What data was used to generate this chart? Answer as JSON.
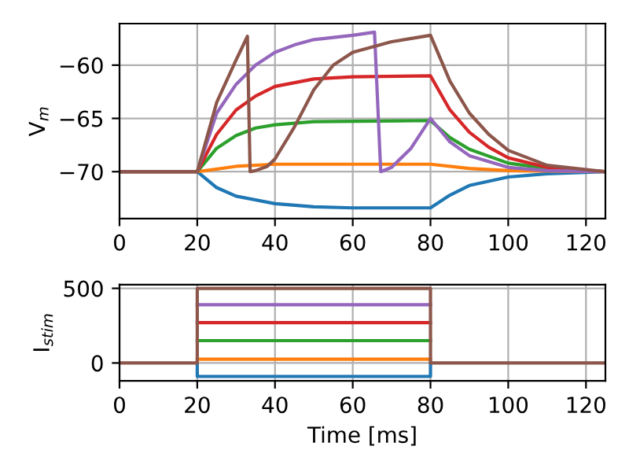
{
  "chart_data": [
    {
      "type": "line",
      "ylabel": "V$_{m}$",
      "xlim": [
        0,
        125
      ],
      "xticks": [
        0,
        20,
        40,
        60,
        80,
        100,
        120
      ],
      "ylim": [
        -74.4,
        -56.1
      ],
      "yticks": [
        {
          "value": -70,
          "label": "−70"
        },
        {
          "value": -65,
          "label": "−65"
        },
        {
          "value": -60,
          "label": "−60"
        }
      ],
      "grid": true,
      "line_style": "solid",
      "marker": "none",
      "series": [
        {
          "color": "#1f77b4",
          "x": [
            0,
            20,
            25,
            30,
            40,
            50,
            60,
            80,
            85,
            90,
            100,
            110,
            125
          ],
          "values": [
            -70,
            -70,
            -71.5,
            -72.3,
            -73.0,
            -73.3,
            -73.4,
            -73.4,
            -72.2,
            -71.3,
            -70.5,
            -70.2,
            -70
          ]
        },
        {
          "color": "#ff7f0e",
          "x": [
            0,
            20,
            30,
            40,
            80,
            90,
            100,
            125
          ],
          "values": [
            -70,
            -70,
            -69.5,
            -69.3,
            -69.3,
            -69.7,
            -69.9,
            -70
          ]
        },
        {
          "color": "#2ca02c",
          "x": [
            0,
            20,
            25,
            30,
            35,
            40,
            50,
            80,
            85,
            90,
            100,
            110,
            125
          ],
          "values": [
            -70,
            -70,
            -67.8,
            -66.6,
            -65.9,
            -65.6,
            -65.3,
            -65.2,
            -66.8,
            -67.9,
            -69.2,
            -69.7,
            -70
          ]
        },
        {
          "color": "#d62728",
          "x": [
            0,
            20,
            25,
            30,
            35,
            40,
            50,
            60,
            80,
            85,
            90,
            95,
            100,
            110,
            125
          ],
          "values": [
            -70,
            -70,
            -66.5,
            -64.2,
            -62.9,
            -62.0,
            -61.3,
            -61.1,
            -61.0,
            -64.2,
            -66.3,
            -67.7,
            -68.7,
            -69.6,
            -70
          ]
        },
        {
          "color": "#9467bd",
          "x": [
            0,
            20,
            25,
            30,
            35,
            40,
            45,
            50,
            60,
            65.6,
            67.2,
            70,
            75,
            80,
            85,
            90,
            100,
            110,
            125
          ],
          "values": [
            -70,
            -70,
            -64.5,
            -61.8,
            -60.0,
            -58.8,
            -58.1,
            -57.6,
            -57.2,
            -56.9,
            -70,
            -69.6,
            -67.8,
            -65.0,
            -67.2,
            -68.5,
            -69.6,
            -69.9,
            -70
          ]
        },
        {
          "color": "#8c564b",
          "x": [
            0,
            20,
            25,
            30,
            32.9,
            33.6,
            35,
            38,
            40,
            45,
            50,
            55,
            60,
            70,
            80,
            85,
            90,
            95,
            100,
            110,
            125
          ],
          "values": [
            -70,
            -70,
            -63.5,
            -59.5,
            -57.3,
            -70,
            -69.9,
            -69.5,
            -68.8,
            -65.8,
            -62.3,
            -60.0,
            -58.8,
            -57.8,
            -57.2,
            -61.5,
            -64.5,
            -66.5,
            -68.0,
            -69.4,
            -70
          ]
        }
      ]
    },
    {
      "type": "line",
      "xlabel": "Time [ms]",
      "ylabel": "I$_{stim}$",
      "xlim": [
        0,
        125
      ],
      "xticks": [
        0,
        20,
        40,
        60,
        80,
        100,
        120
      ],
      "ylim": [
        -120,
        525
      ],
      "yticks": [
        0,
        500
      ],
      "grid": true,
      "line_style": "solid",
      "marker": "none",
      "series": [
        {
          "color": "#1f77b4",
          "x": [
            20,
            20,
            80,
            80
          ],
          "values": [
            0,
            -90,
            -90,
            0
          ]
        },
        {
          "color": "#ff7f0e",
          "x": [
            20,
            80
          ],
          "values": [
            25,
            25
          ]
        },
        {
          "color": "#2ca02c",
          "x": [
            20,
            80
          ],
          "values": [
            150,
            150
          ]
        },
        {
          "color": "#d62728",
          "x": [
            20,
            80
          ],
          "values": [
            270,
            270
          ]
        },
        {
          "color": "#9467bd",
          "x": [
            20,
            80
          ],
          "values": [
            390,
            390
          ]
        },
        {
          "color": "#8c564b",
          "x": [
            0,
            20,
            20,
            80,
            80,
            125
          ],
          "values": [
            0,
            0,
            500,
            500,
            0,
            0
          ]
        }
      ]
    }
  ]
}
